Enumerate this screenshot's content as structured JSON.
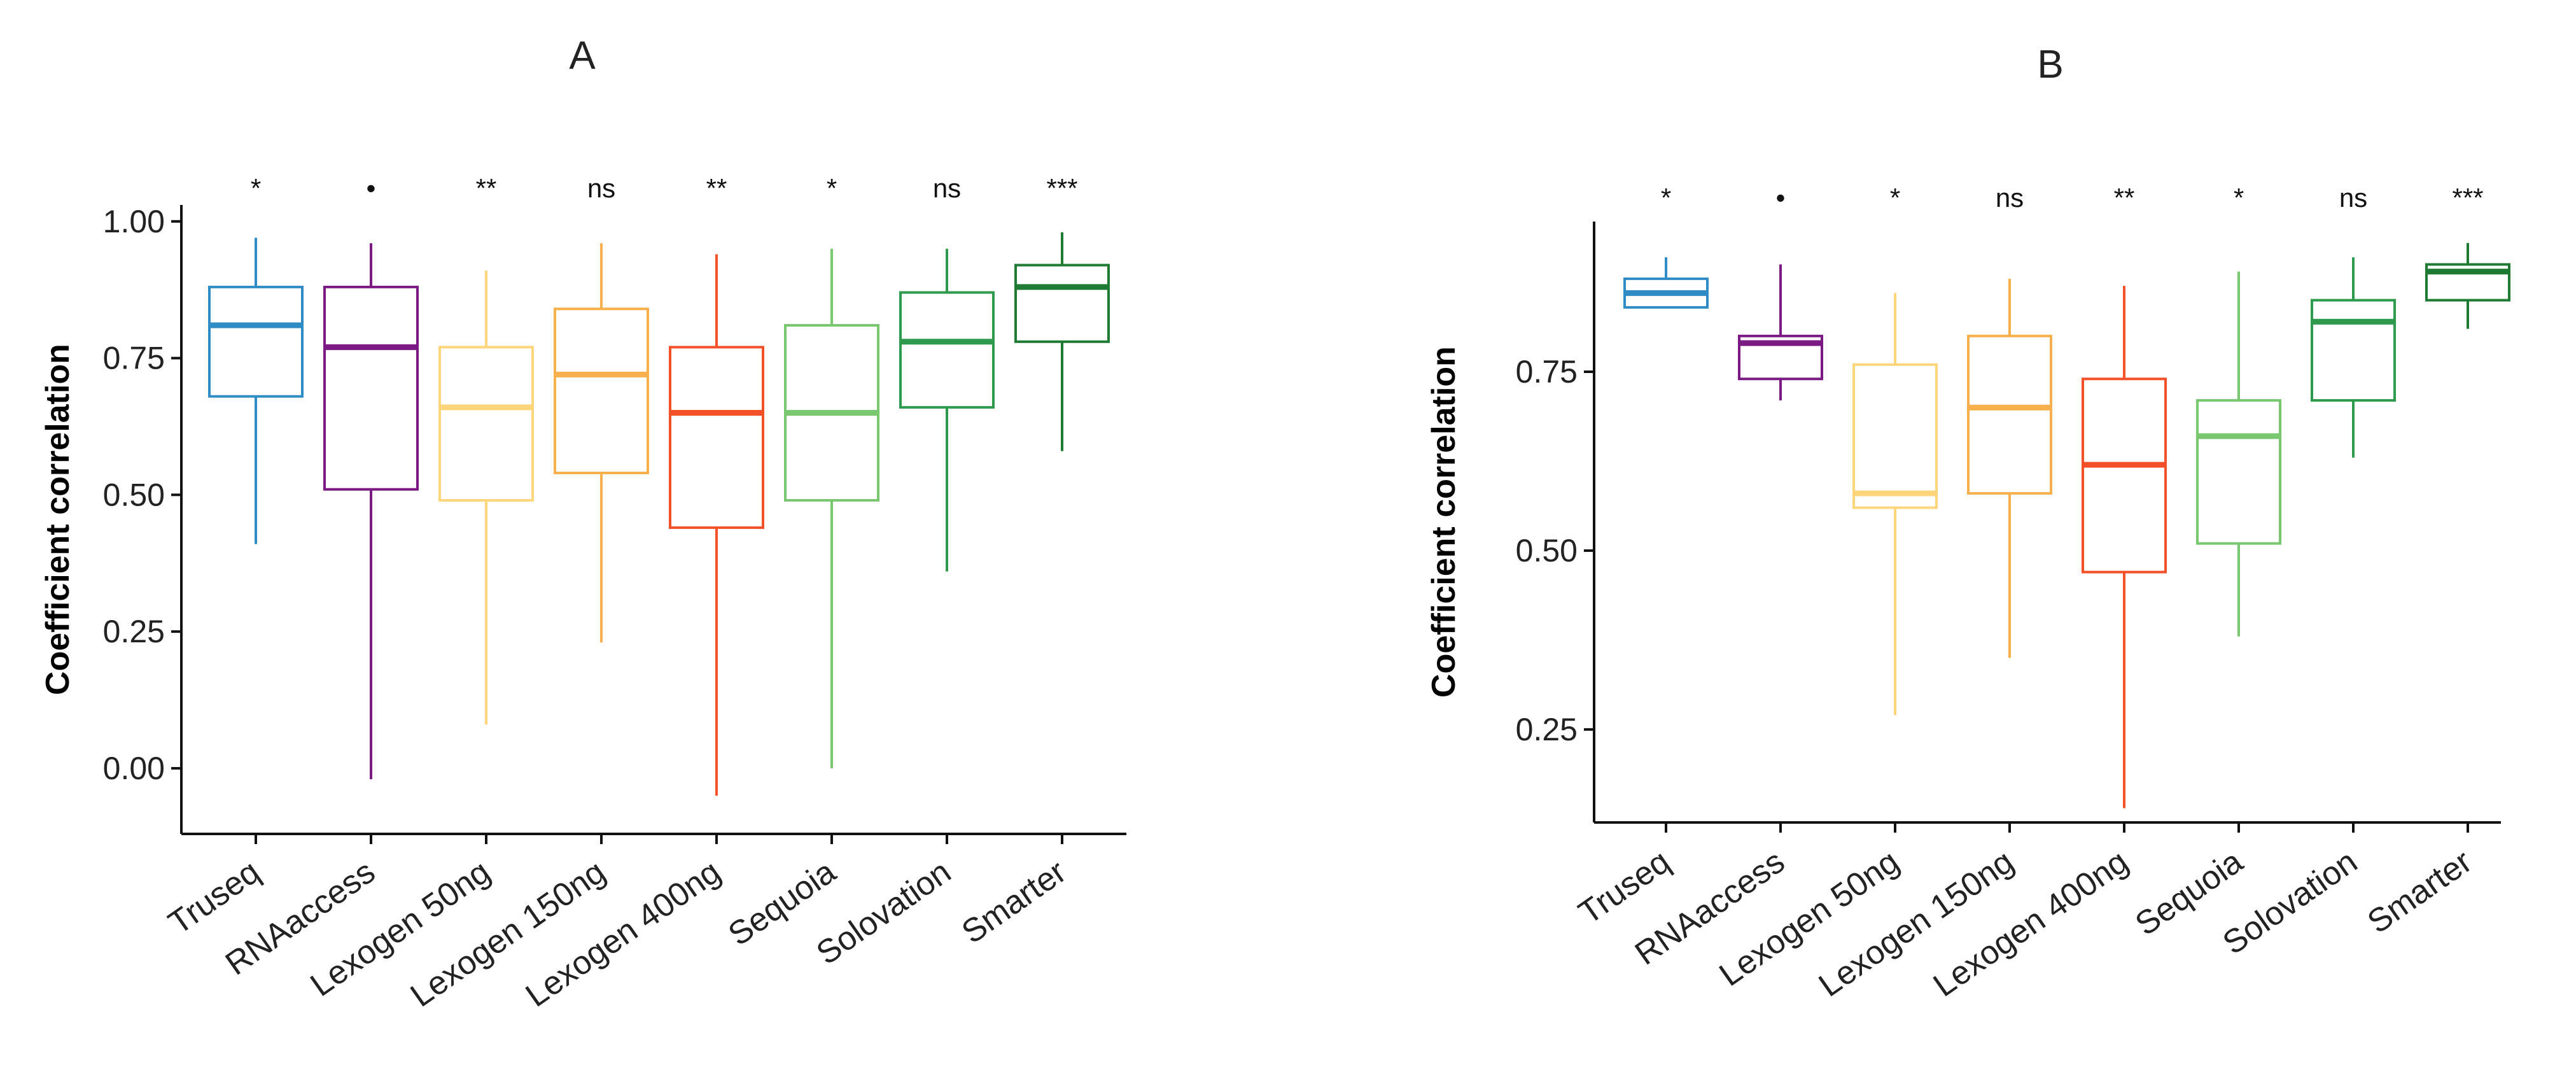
{
  "chart_data": [
    {
      "type": "box",
      "title": "A",
      "xlabel": "",
      "ylabel": "Coefficient correlation",
      "ylim": [
        -0.12,
        1.03
      ],
      "yticks": [
        "0.00",
        "0.25",
        "0.50",
        "0.75",
        "1.00"
      ],
      "ytick_values": [
        0.0,
        0.25,
        0.5,
        0.75,
        1.0
      ],
      "categories": [
        "Truseq",
        "RNAaccess",
        "Lexogen 50ng",
        "Lexogen 150ng",
        "Lexogen 400ng",
        "Sequoia",
        "Solovation",
        "Smarter"
      ],
      "significance": [
        "*",
        "•",
        "**",
        "ns",
        "**",
        "*",
        "ns",
        "***"
      ],
      "colors": [
        "#2f8cc4",
        "#7b1a84",
        "#fdd57a",
        "#f8b04c",
        "#f4502a",
        "#79c86f",
        "#2d9a4d",
        "#1f7a33"
      ],
      "boxes": [
        {
          "min": 0.41,
          "q1": 0.68,
          "median": 0.81,
          "q3": 0.88,
          "max": 0.97
        },
        {
          "min": -0.02,
          "q1": 0.51,
          "median": 0.77,
          "q3": 0.88,
          "max": 0.96
        },
        {
          "min": 0.08,
          "q1": 0.49,
          "median": 0.66,
          "q3": 0.77,
          "max": 0.91
        },
        {
          "min": 0.23,
          "q1": 0.54,
          "median": 0.72,
          "q3": 0.84,
          "max": 0.96
        },
        {
          "min": -0.05,
          "q1": 0.44,
          "median": 0.65,
          "q3": 0.77,
          "max": 0.94
        },
        {
          "min": 0.0,
          "q1": 0.49,
          "median": 0.65,
          "q3": 0.81,
          "max": 0.95
        },
        {
          "min": 0.36,
          "q1": 0.66,
          "median": 0.78,
          "q3": 0.87,
          "max": 0.95
        },
        {
          "min": 0.58,
          "q1": 0.78,
          "median": 0.88,
          "q3": 0.92,
          "max": 0.98
        }
      ]
    },
    {
      "type": "box",
      "title": "B",
      "xlabel": "",
      "ylabel": "Coefficient correlation",
      "ylim": [
        0.12,
        0.96
      ],
      "yticks": [
        "0.25",
        "0.50",
        "0.75"
      ],
      "ytick_values": [
        0.25,
        0.5,
        0.75
      ],
      "categories": [
        "Truseq",
        "RNAaccess",
        "Lexogen 50ng",
        "Lexogen 150ng",
        "Lexogen 400ng",
        "Sequoia",
        "Solovation",
        "Smarter"
      ],
      "significance": [
        "*",
        "•",
        "*",
        "ns",
        "**",
        "*",
        "ns",
        "***"
      ],
      "colors": [
        "#2f8cc4",
        "#7b1a84",
        "#fdd57a",
        "#f8b04c",
        "#f4502a",
        "#79c86f",
        "#2d9a4d",
        "#1f7a33"
      ],
      "boxes": [
        {
          "min": 0.84,
          "q1": 0.84,
          "median": 0.86,
          "q3": 0.88,
          "max": 0.91
        },
        {
          "min": 0.71,
          "q1": 0.74,
          "median": 0.79,
          "q3": 0.8,
          "max": 0.9
        },
        {
          "min": 0.27,
          "q1": 0.56,
          "median": 0.58,
          "q3": 0.76,
          "max": 0.86
        },
        {
          "min": 0.35,
          "q1": 0.58,
          "median": 0.7,
          "q3": 0.8,
          "max": 0.88
        },
        {
          "min": 0.14,
          "q1": 0.47,
          "median": 0.62,
          "q3": 0.74,
          "max": 0.87
        },
        {
          "min": 0.38,
          "q1": 0.51,
          "median": 0.66,
          "q3": 0.71,
          "max": 0.89
        },
        {
          "min": 0.63,
          "q1": 0.71,
          "median": 0.82,
          "q3": 0.85,
          "max": 0.91
        },
        {
          "min": 0.81,
          "q1": 0.85,
          "median": 0.89,
          "q3": 0.9,
          "max": 0.93
        }
      ]
    }
  ]
}
